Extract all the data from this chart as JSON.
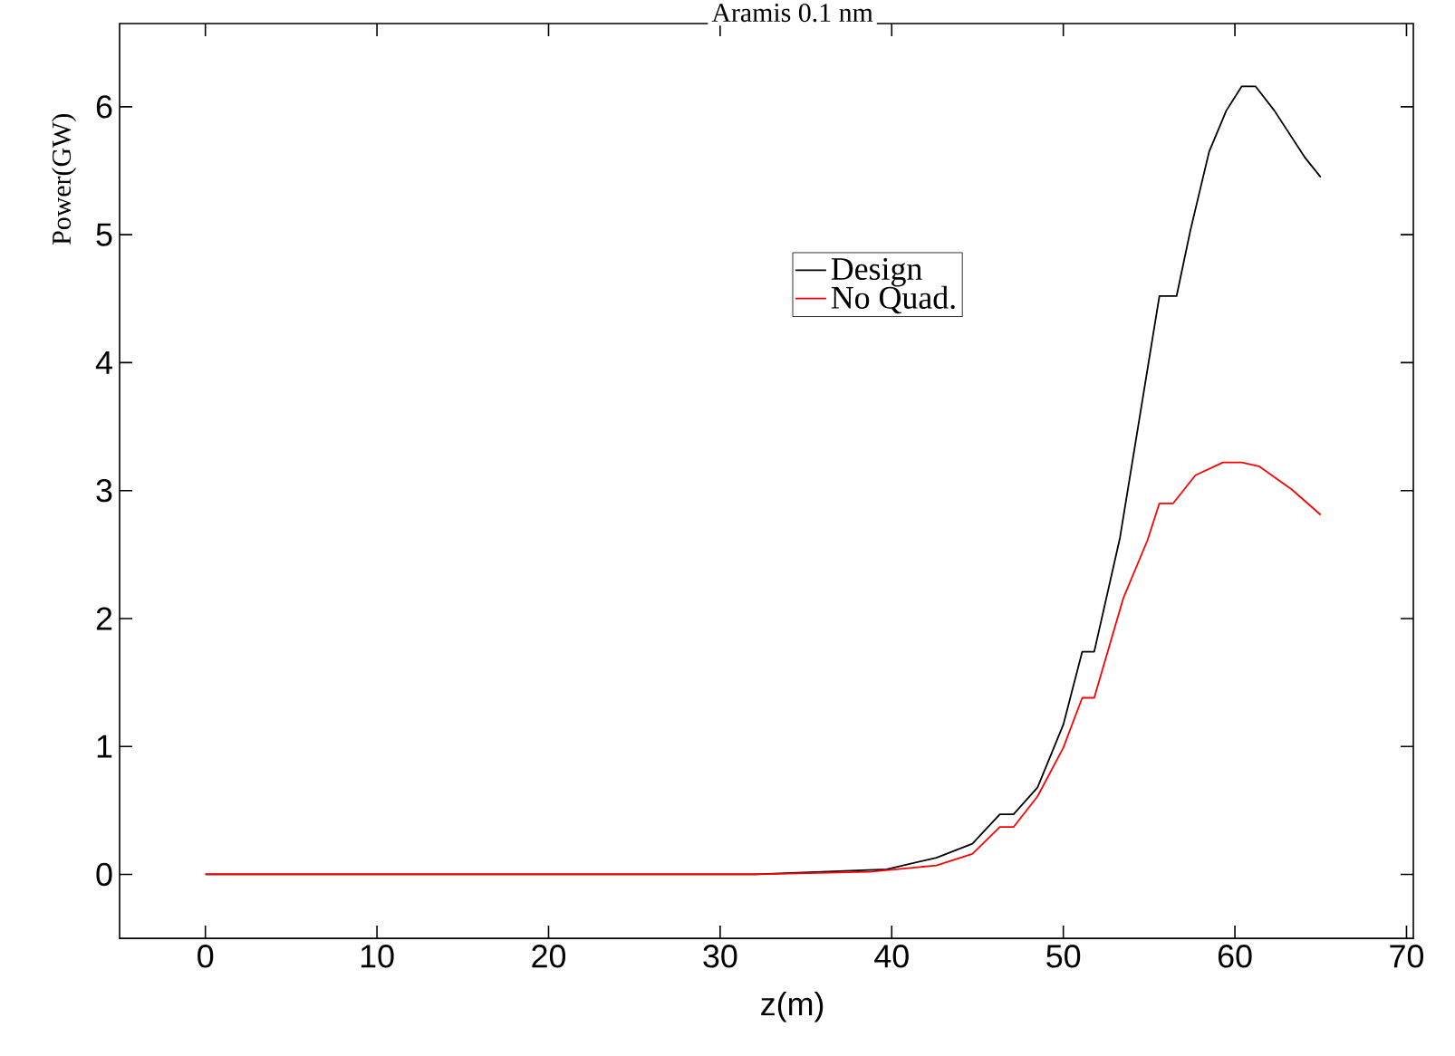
{
  "chart_data": {
    "type": "line",
    "title": "Aramis 0.1 nm",
    "xlabel": "z(m)",
    "ylabel": "Power(GW)",
    "xlim": [
      -5,
      70.4
    ],
    "ylim": [
      -0.5,
      6.65
    ],
    "xticks": [
      0,
      10,
      20,
      30,
      40,
      50,
      60,
      70
    ],
    "yticks": [
      0,
      1,
      2,
      3,
      4,
      5,
      6
    ],
    "grid": false,
    "legend": "top right",
    "marker": "none",
    "line_style": "solid",
    "series": [
      {
        "name": "Design",
        "color": "#000000",
        "x": [
          0,
          32.1,
          39.7,
          42.6,
          44.7,
          46.3,
          47.1,
          48.5,
          50,
          51.1,
          51.8,
          53.3,
          55.6,
          56.6,
          57.4,
          58.5,
          59.5,
          60.4,
          61.2,
          62.3,
          64.1,
          65
        ],
        "values": [
          0,
          0,
          0.04,
          0.13,
          0.24,
          0.47,
          0.47,
          0.68,
          1.17,
          1.74,
          1.74,
          2.63,
          4.52,
          4.52,
          5.03,
          5.65,
          5.97,
          6.16,
          6.16,
          5.97,
          5.6,
          5.45
        ]
      },
      {
        "name": "No Quad.",
        "color": "#ff0000",
        "x": [
          0,
          32.1,
          38.7,
          42.6,
          44.7,
          46.3,
          47.1,
          48.5,
          50,
          51.1,
          51.8,
          53.5,
          54.9,
          55.6,
          56.4,
          57.7,
          59.3,
          60.4,
          61.4,
          63.3,
          65
        ],
        "values": [
          0,
          0,
          0.02,
          0.07,
          0.16,
          0.37,
          0.37,
          0.61,
          0.99,
          1.38,
          1.38,
          2.16,
          2.61,
          2.9,
          2.9,
          3.12,
          3.22,
          3.22,
          3.19,
          3.01,
          2.81
        ]
      }
    ]
  }
}
